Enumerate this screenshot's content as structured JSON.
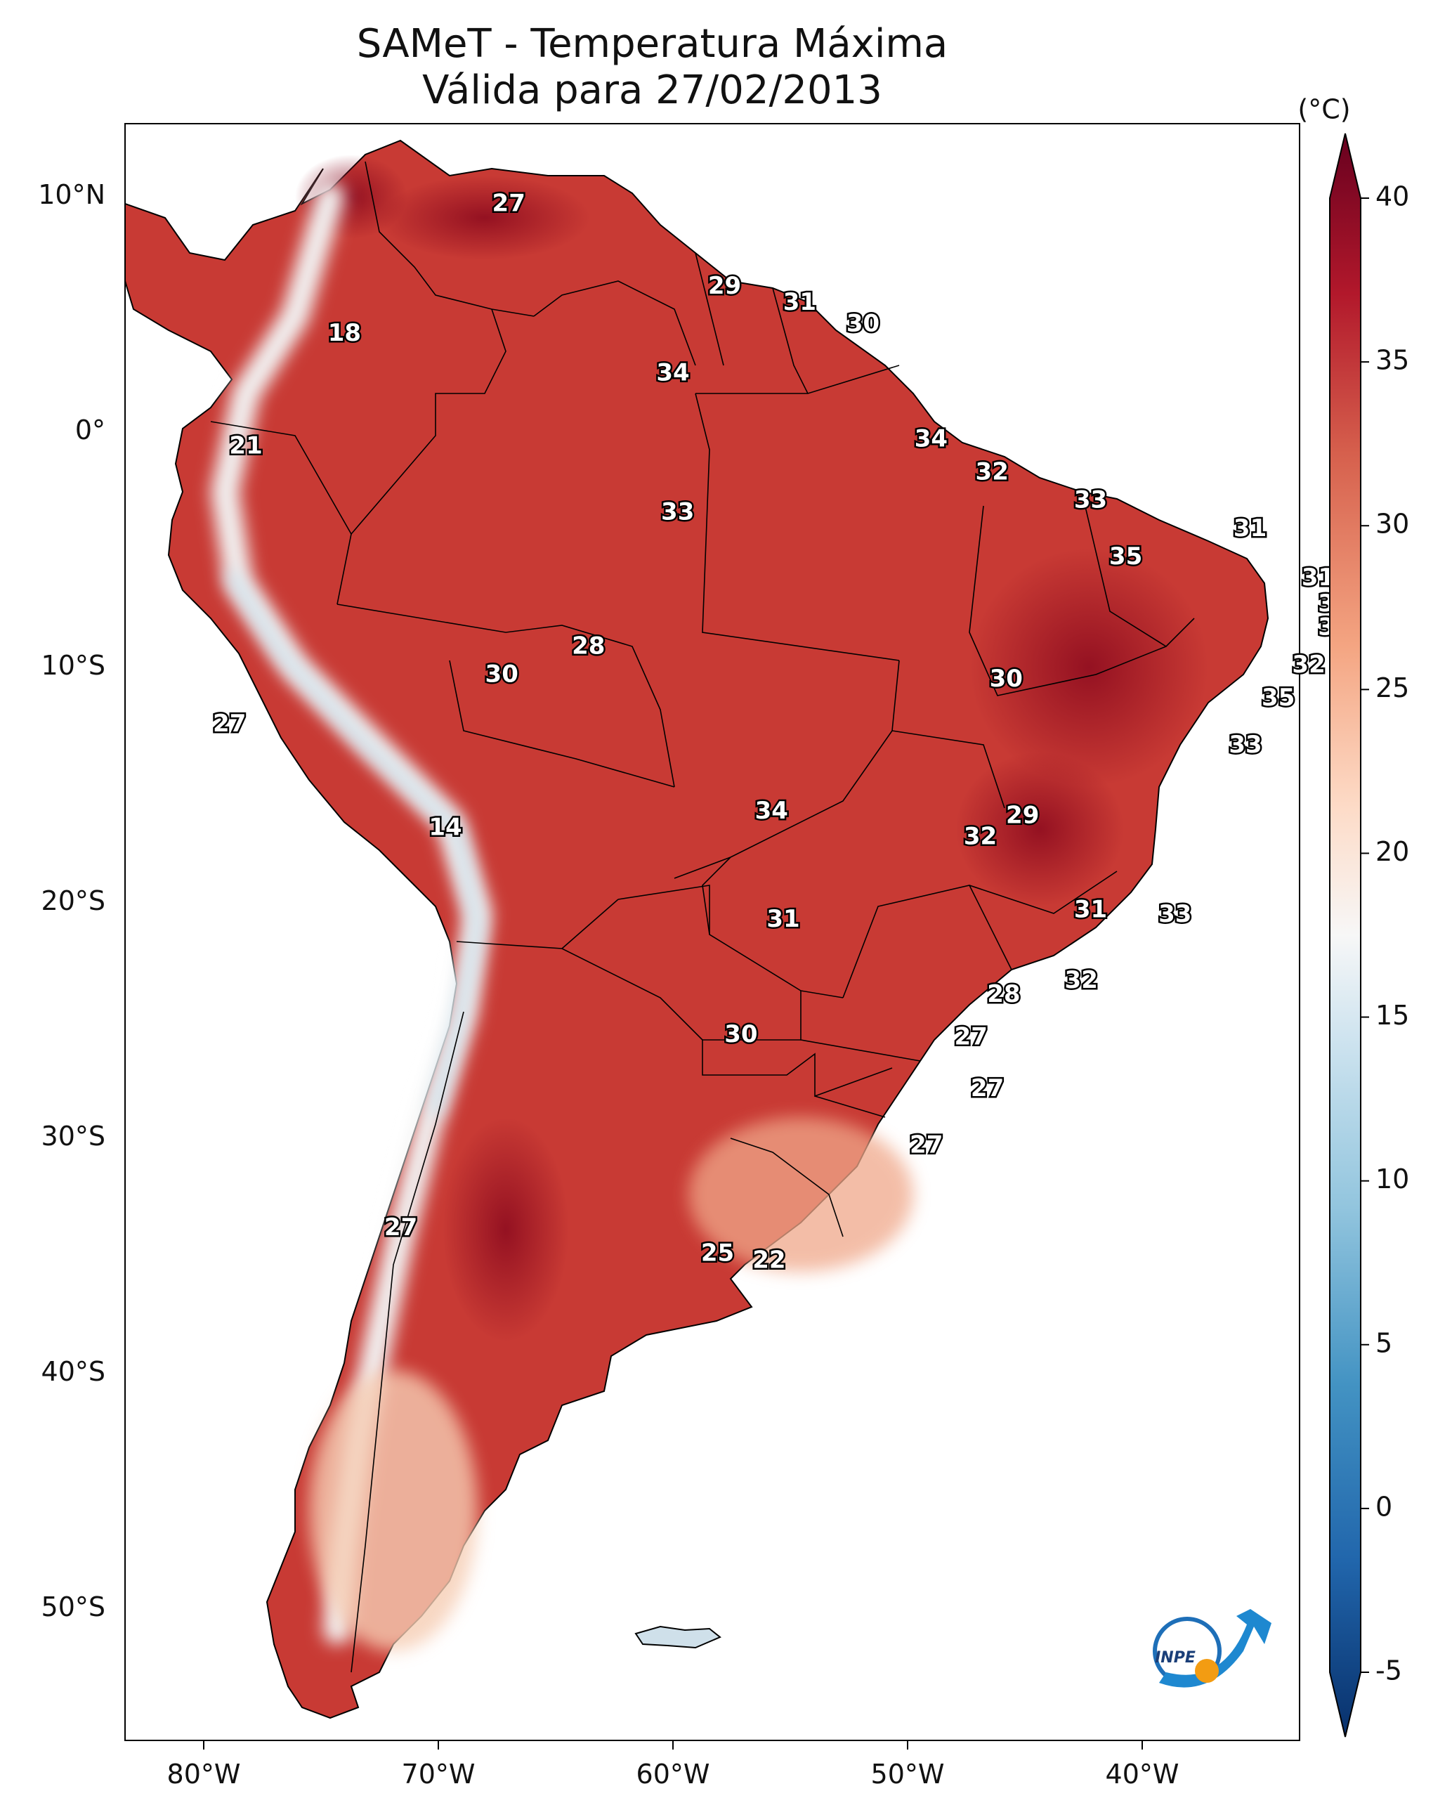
{
  "title": {
    "line1": "SAMeT - Temperatura Máxima",
    "line2": "Válida para 27/02/2013"
  },
  "axes": {
    "lon_ticks": [
      "80°W",
      "70°W",
      "60°W",
      "50°W",
      "40°W"
    ],
    "lat_ticks": [
      "10°N",
      "0°",
      "10°S",
      "20°S",
      "30°S",
      "40°S",
      "50°S"
    ]
  },
  "colorbar": {
    "unit": "(°C)",
    "ticks": [
      "40",
      "35",
      "30",
      "25",
      "20",
      "15",
      "10",
      "5",
      "0",
      "-5"
    ],
    "range": [
      -5,
      40
    ],
    "colors": [
      "#08306b",
      "#2166ac",
      "#4393c3",
      "#92c5de",
      "#d1e5f0",
      "#f7f7f7",
      "#fddbc7",
      "#f4a582",
      "#d6604d",
      "#b2182b",
      "#67001f"
    ]
  },
  "logo": {
    "text": "INPE"
  },
  "stations": [
    {
      "value": "27",
      "lon": -67.0,
      "lat": 10.0
    },
    {
      "value": "18",
      "lon": -74.0,
      "lat": 4.5
    },
    {
      "value": "29",
      "lon": -57.8,
      "lat": 6.5
    },
    {
      "value": "31",
      "lon": -54.6,
      "lat": 5.8
    },
    {
      "value": "30",
      "lon": -51.9,
      "lat": 4.9
    },
    {
      "value": "34",
      "lon": -60.0,
      "lat": 2.8
    },
    {
      "value": "21",
      "lon": -78.2,
      "lat": -0.3
    },
    {
      "value": "34",
      "lon": -49.0,
      "lat": 0.0
    },
    {
      "value": "32",
      "lon": -46.4,
      "lat": -1.4
    },
    {
      "value": "33",
      "lon": -59.8,
      "lat": -3.1
    },
    {
      "value": "33",
      "lon": -42.2,
      "lat": -2.6
    },
    {
      "value": "31",
      "lon": -35.4,
      "lat": -3.8
    },
    {
      "value": "35",
      "lon": -40.7,
      "lat": -5.0
    },
    {
      "value": "31",
      "lon": -32.5,
      "lat": -5.9
    },
    {
      "value": "32",
      "lon": -31.8,
      "lat": -7.0
    },
    {
      "value": "32",
      "lon": -31.8,
      "lat": -8.0
    },
    {
      "value": "28",
      "lon": -63.6,
      "lat": -8.8
    },
    {
      "value": "30",
      "lon": -67.3,
      "lat": -10.0
    },
    {
      "value": "30",
      "lon": -45.8,
      "lat": -10.2
    },
    {
      "value": "32",
      "lon": -32.9,
      "lat": -9.6
    },
    {
      "value": "35",
      "lon": -34.2,
      "lat": -11.0
    },
    {
      "value": "27",
      "lon": -78.9,
      "lat": -12.1
    },
    {
      "value": "33",
      "lon": -35.6,
      "lat": -13.0
    },
    {
      "value": "34",
      "lon": -55.8,
      "lat": -15.8
    },
    {
      "value": "29",
      "lon": -45.1,
      "lat": -16.0
    },
    {
      "value": "32",
      "lon": -46.9,
      "lat": -16.9
    },
    {
      "value": "14",
      "lon": -69.7,
      "lat": -16.5
    },
    {
      "value": "31",
      "lon": -42.2,
      "lat": -20.0
    },
    {
      "value": "33",
      "lon": -38.6,
      "lat": -20.2
    },
    {
      "value": "31",
      "lon": -55.3,
      "lat": -20.4
    },
    {
      "value": "32",
      "lon": -42.6,
      "lat": -23.0
    },
    {
      "value": "28",
      "lon": -45.9,
      "lat": -23.6
    },
    {
      "value": "30",
      "lon": -57.1,
      "lat": -25.3
    },
    {
      "value": "27",
      "lon": -47.3,
      "lat": -25.4
    },
    {
      "value": "27",
      "lon": -46.6,
      "lat": -27.6
    },
    {
      "value": "27",
      "lon": -49.2,
      "lat": -30.0
    },
    {
      "value": "27",
      "lon": -71.6,
      "lat": -33.5
    },
    {
      "value": "25",
      "lon": -58.1,
      "lat": -34.6
    },
    {
      "value": "22",
      "lon": -55.9,
      "lat": -34.9
    }
  ]
}
